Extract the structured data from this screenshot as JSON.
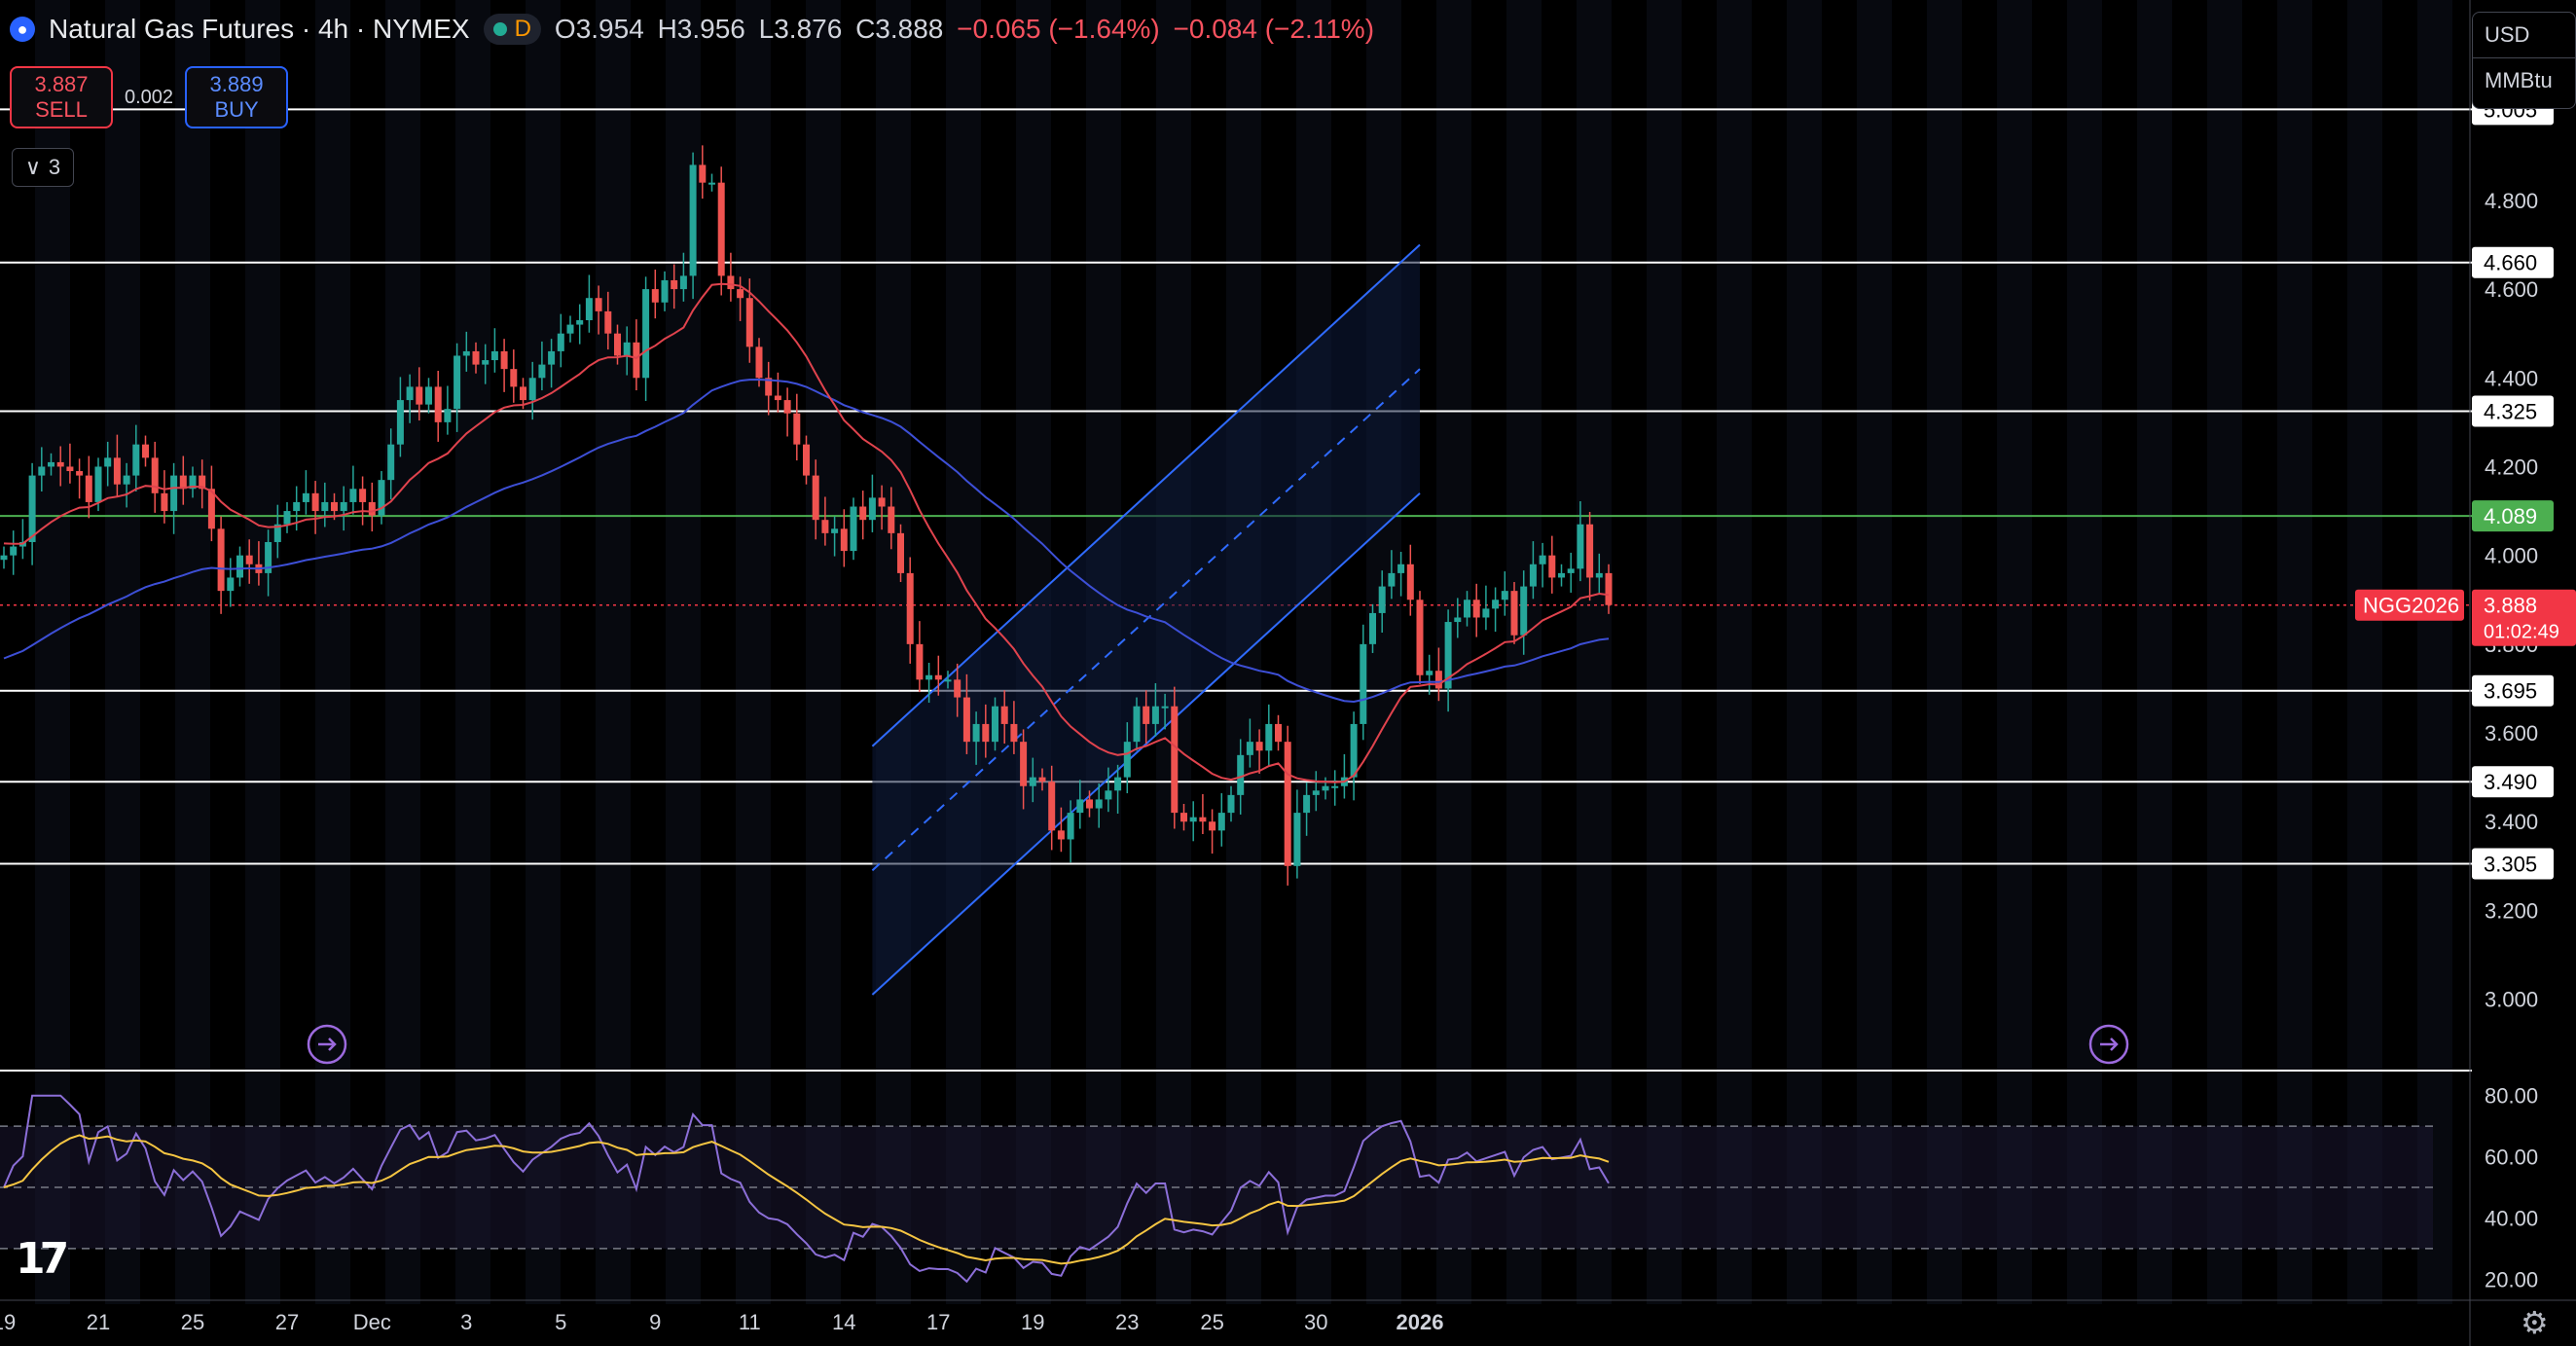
{
  "header": {
    "symbol_title": "Natural Gas Futures · 4h · NYMEX",
    "status_letter": "D",
    "ohlc": {
      "o": "O3.954",
      "h": "H3.956",
      "l": "L3.876",
      "c": "C3.888",
      "chg": "−0.065 (−1.64%)",
      "chg2": "−0.084 (−2.11%)"
    }
  },
  "trade": {
    "sell_price": "3.887",
    "sell_label": "SELL",
    "spread": "0.002",
    "buy_price": "3.889",
    "buy_label": "BUY"
  },
  "indicator_toggle": {
    "count": "3"
  },
  "units": {
    "currency": "USD",
    "unit": "MMBtu"
  },
  "colors": {
    "up": "#26a69a",
    "down": "#ef5350",
    "ma_fast": "#e0434d",
    "ma_slow": "#3d4fd6",
    "channel": "#2f6bff",
    "rsi": "#8c6fd8",
    "rsi_ma": "#f5c542",
    "support": "#ffffff",
    "green_level": "#4caf50"
  },
  "chart_data": {
    "type": "candlestick",
    "title": "Natural Gas Futures · 4h · NYMEX",
    "ylim": [
      2.85,
      5.12
    ],
    "x_ticks": [
      {
        "label": "19",
        "i": 0
      },
      {
        "label": "21",
        "i": 10
      },
      {
        "label": "25",
        "i": 20
      },
      {
        "label": "27",
        "i": 30
      },
      {
        "label": "Dec",
        "i": 39
      },
      {
        "label": "3",
        "i": 49
      },
      {
        "label": "5",
        "i": 59
      },
      {
        "label": "9",
        "i": 69
      },
      {
        "label": "11",
        "i": 79
      },
      {
        "label": "14",
        "i": 89
      },
      {
        "label": "17",
        "i": 99
      },
      {
        "label": "19",
        "i": 109
      },
      {
        "label": "23",
        "i": 119
      },
      {
        "label": "25",
        "i": 128
      },
      {
        "label": "30",
        "i": 139
      },
      {
        "label": "2026",
        "i": 150
      }
    ],
    "y_ticks": [
      "5.000",
      "4.800",
      "4.600",
      "4.400",
      "4.200",
      "4.000",
      "3.800",
      "3.600",
      "3.400",
      "3.200",
      "3.000"
    ],
    "levels": [
      {
        "value": 5.005,
        "label": "5.005",
        "color": "#ffffff"
      },
      {
        "value": 4.66,
        "label": "4.660",
        "color": "#ffffff"
      },
      {
        "value": 4.325,
        "label": "4.325",
        "color": "#ffffff"
      },
      {
        "value": 4.089,
        "label": "4.089",
        "color": "#4caf50"
      },
      {
        "value": 3.695,
        "label": "3.695",
        "color": "#ffffff"
      },
      {
        "value": 3.49,
        "label": "3.490",
        "color": "#ffffff"
      },
      {
        "value": 3.305,
        "label": "3.305",
        "color": "#ffffff"
      }
    ],
    "last_price": {
      "value": 3.888,
      "label": "3.888",
      "countdown": "01:02:49",
      "symbol": "NGG2026"
    },
    "closes": [
      4.0,
      4.02,
      4.03,
      4.18,
      4.2,
      4.21,
      4.2,
      4.19,
      4.18,
      4.12,
      4.2,
      4.22,
      4.16,
      4.18,
      4.25,
      4.22,
      4.14,
      4.1,
      4.18,
      4.15,
      4.18,
      4.15,
      4.06,
      3.92,
      3.95,
      4.0,
      3.98,
      3.96,
      4.03,
      4.07,
      4.1,
      4.12,
      4.14,
      4.1,
      4.12,
      4.1,
      4.12,
      4.15,
      4.12,
      4.09,
      4.17,
      4.25,
      4.35,
      4.38,
      4.34,
      4.38,
      4.3,
      4.33,
      4.45,
      4.46,
      4.43,
      4.44,
      4.46,
      4.42,
      4.38,
      4.35,
      4.4,
      4.43,
      4.46,
      4.5,
      4.52,
      4.53,
      4.58,
      4.55,
      4.5,
      4.45,
      4.48,
      4.4,
      4.6,
      4.57,
      4.62,
      4.6,
      4.63,
      4.88,
      4.84,
      4.84,
      4.63,
      4.6,
      4.58,
      4.47,
      4.4,
      4.36,
      4.35,
      4.32,
      4.25,
      4.18,
      4.08,
      4.05,
      4.06,
      4.01,
      4.11,
      4.08,
      4.13,
      4.11,
      4.05,
      3.96,
      3.8,
      3.72,
      3.73,
      3.72,
      3.72,
      3.68,
      3.58,
      3.62,
      3.58,
      3.66,
      3.62,
      3.58,
      3.48,
      3.5,
      3.49,
      3.38,
      3.36,
      3.42,
      3.45,
      3.43,
      3.45,
      3.47,
      3.5,
      3.58,
      3.66,
      3.62,
      3.66,
      3.66,
      3.42,
      3.4,
      3.41,
      3.4,
      3.38,
      3.42,
      3.46,
      3.55,
      3.58,
      3.56,
      3.62,
      3.58,
      3.3,
      3.42,
      3.46,
      3.47,
      3.48,
      3.48,
      3.5,
      3.62,
      3.8,
      3.87,
      3.93,
      3.96,
      3.98,
      3.9,
      3.73,
      3.74,
      3.7,
      3.85,
      3.86,
      3.9,
      3.86,
      3.88,
      3.9,
      3.92,
      3.82,
      3.93,
      3.98,
      4.0,
      3.95,
      3.96,
      3.97,
      4.07,
      3.95,
      3.96,
      3.888
    ],
    "ma_fast_start": 4.03,
    "ma_slow_start": 3.76,
    "rsi_ylim": [
      15,
      85
    ],
    "rsi_ticks": [
      "80.00",
      "60.00",
      "40.00",
      "20.00"
    ],
    "rsi_bands": [
      70,
      50,
      30
    ]
  }
}
